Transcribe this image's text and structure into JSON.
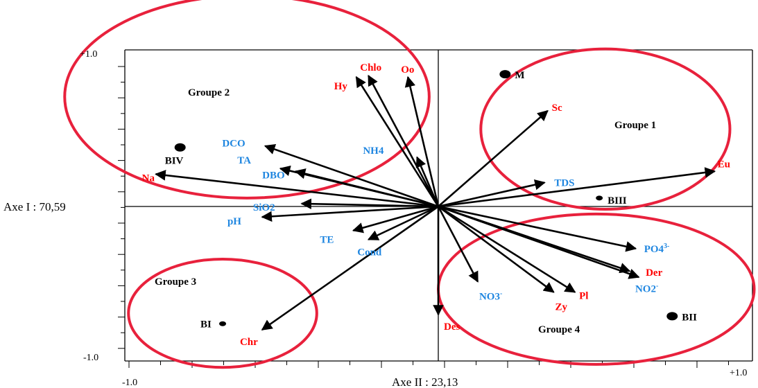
{
  "chart_data": {
    "type": "scatter",
    "x_axis_label": "Axe II : 23,13",
    "y_axis_label": "Axe I : 70,59",
    "xlim": [
      -1.0,
      1.0
    ],
    "ylim": [
      -1.0,
      1.0
    ],
    "tick_labels": {
      "xmin": "-1.0",
      "xmax": "+1.0",
      "ymin": "-1.0",
      "ymax": "+1.0"
    },
    "colors": {
      "red_variables": "#ff0000",
      "blue_variables": "#1f86e0",
      "groups": "#e8213c",
      "axes": "#000000"
    },
    "vectors": [
      {
        "label": "Chlo",
        "x": -0.23,
        "y": 0.93,
        "color": "red"
      },
      {
        "label": "Hy",
        "x": -0.27,
        "y": 0.92,
        "color": "red"
      },
      {
        "label": "Oo",
        "x": -0.1,
        "y": 0.92,
        "color": "red"
      },
      {
        "label": "Sc",
        "x": 0.36,
        "y": 0.68,
        "color": "red"
      },
      {
        "label": "Eu",
        "x": 0.91,
        "y": 0.25,
        "color": "red"
      },
      {
        "label": "Na",
        "x": -0.93,
        "y": 0.23,
        "color": "red"
      },
      {
        "label": "Chr",
        "x": -0.58,
        "y": -0.82,
        "color": "red"
      },
      {
        "label": "Des",
        "x": 0.0,
        "y": -0.72,
        "color": "red"
      },
      {
        "label": "Zy",
        "x": 0.38,
        "y": -0.57,
        "color": "red"
      },
      {
        "label": "Pl",
        "x": 0.45,
        "y": -0.57,
        "color": "red"
      },
      {
        "label": "Der",
        "x": 0.66,
        "y": -0.47,
        "color": "red"
      },
      {
        "label": "DCO",
        "x": -0.57,
        "y": 0.43,
        "color": "blue"
      },
      {
        "label": "TA",
        "x": -0.52,
        "y": 0.27,
        "color": "blue"
      },
      {
        "label": "DBO",
        "x": -0.47,
        "y": 0.25,
        "color": "blue"
      },
      {
        "label": "SiO2",
        "x": -0.45,
        "y": 0.02,
        "color": "blue"
      },
      {
        "label": "pH",
        "x": -0.58,
        "y": -0.07,
        "color": "blue"
      },
      {
        "label": "TE",
        "x": -0.28,
        "y": -0.16,
        "color": "blue"
      },
      {
        "label": "Cond",
        "x": -0.23,
        "y": -0.22,
        "color": "blue"
      },
      {
        "label": "NH4",
        "x": -0.07,
        "y": 0.35,
        "color": "blue"
      },
      {
        "label": "TDS",
        "x": 0.35,
        "y": 0.17,
        "color": "blue"
      },
      {
        "label": "PO4",
        "label_sup": "3-",
        "x": 0.65,
        "y": -0.28,
        "color": "blue"
      },
      {
        "label": "NO2",
        "label_sup": "-",
        "x": 0.63,
        "y": -0.43,
        "color": "blue"
      },
      {
        "label": "NO3",
        "label_sup": "-",
        "x": 0.13,
        "y": -0.5,
        "color": "blue"
      }
    ],
    "sites": [
      {
        "label": "M",
        "x": 0.22,
        "y": 0.94,
        "size": "large"
      },
      {
        "label": "BIV",
        "x": -0.85,
        "y": 0.42,
        "size": "large"
      },
      {
        "label": "BIII",
        "x": 0.53,
        "y": 0.06,
        "size": "small"
      },
      {
        "label": "BII",
        "x": 0.77,
        "y": -0.73,
        "size": "large"
      },
      {
        "label": "BI",
        "x": -0.71,
        "y": -0.78,
        "size": "small"
      }
    ],
    "groups": [
      {
        "label": "Groupe 1",
        "cx": 0.55,
        "cy": 0.55,
        "rx": 0.41,
        "ry": 0.57
      },
      {
        "label": "Groupe 2",
        "cx": -0.63,
        "cy": 0.78,
        "rx": 0.6,
        "ry": 0.72
      },
      {
        "label": "Groupe 3",
        "cx": -0.71,
        "cy": -0.71,
        "rx": 0.31,
        "ry": 0.36
      },
      {
        "label": "Groupe 4",
        "cx": 0.52,
        "cy": -0.55,
        "rx": 0.52,
        "ry": 0.5
      }
    ]
  }
}
